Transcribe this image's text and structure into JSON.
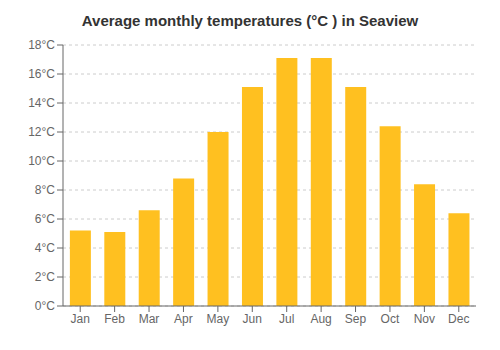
{
  "chart_data": {
    "type": "bar",
    "title": "Average monthly temperatures (°C ) in Seaview",
    "categories": [
      "Jan",
      "Feb",
      "Mar",
      "Apr",
      "May",
      "Jun",
      "Jul",
      "Aug",
      "Sep",
      "Oct",
      "Nov",
      "Dec"
    ],
    "values": [
      5.2,
      5.1,
      6.6,
      8.8,
      12.0,
      15.1,
      17.1,
      17.1,
      15.1,
      12.4,
      8.4,
      6.4
    ],
    "color": "#FFC020",
    "ylim": [
      0,
      18
    ],
    "yticks": [
      {
        "value": 0,
        "label": "0°C"
      },
      {
        "value": 2,
        "label": "2°C"
      },
      {
        "value": 4,
        "label": "4°C"
      },
      {
        "value": 6,
        "label": "6°C"
      },
      {
        "value": 8,
        "label": "8°C"
      },
      {
        "value": 10,
        "label": "10°C"
      },
      {
        "value": 12,
        "label": "12°C"
      },
      {
        "value": 14,
        "label": "14°C"
      },
      {
        "value": 16,
        "label": "16°C"
      },
      {
        "value": 18,
        "label": "18°C"
      }
    ],
    "grid": true
  }
}
